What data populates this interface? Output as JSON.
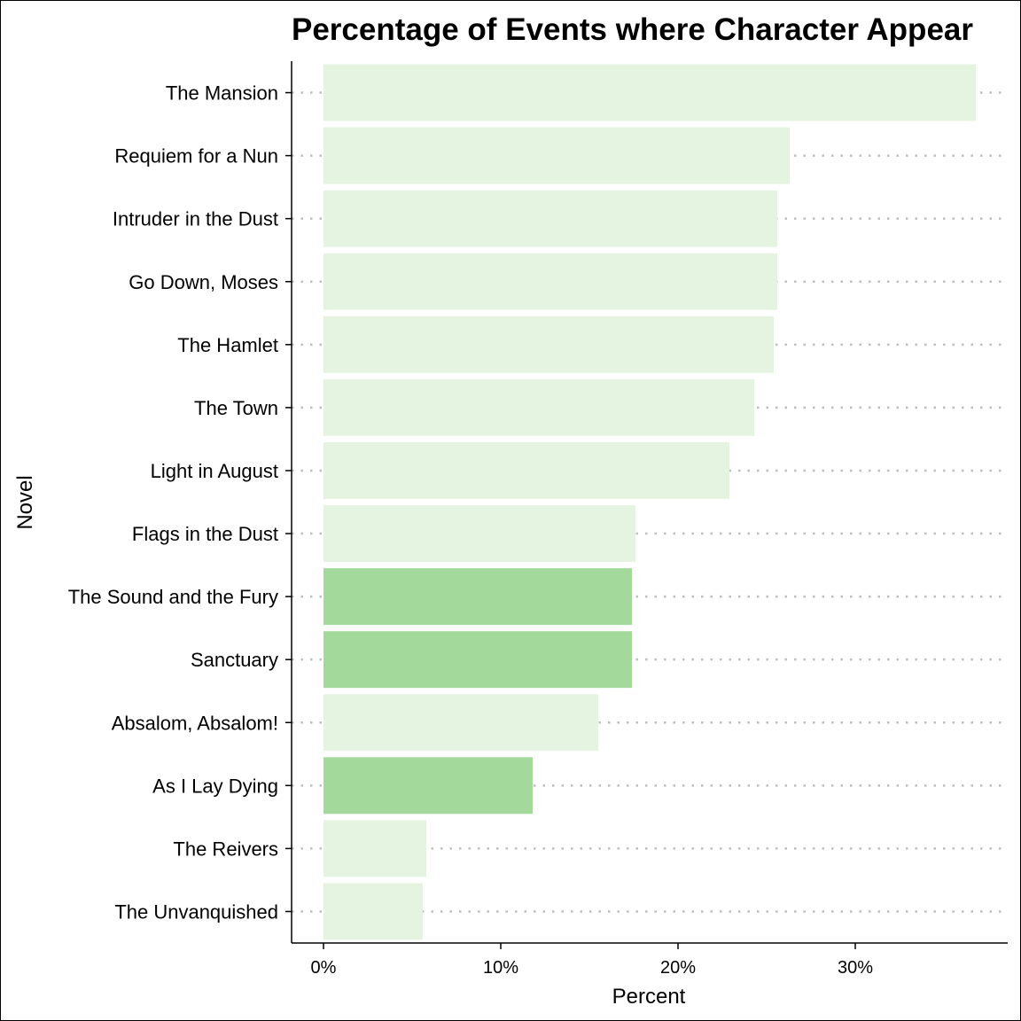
{
  "chart_data": {
    "type": "bar",
    "orientation": "horizontal",
    "title": "Percentage of Events where Character Appear",
    "xlabel": "Percent",
    "ylabel": "Novel",
    "xlim": [
      -1.8,
      38.6
    ],
    "x_ticks": [
      0,
      10,
      20,
      30
    ],
    "x_tick_labels": [
      "0%",
      "10%",
      "20%",
      "30%"
    ],
    "categories": [
      "The Mansion",
      "Requiem for a Nun",
      "Intruder in the Dust",
      "Go Down, Moses",
      "The Hamlet",
      "The Town",
      "Light in August",
      "Flags in the Dust",
      "The Sound and the Fury",
      "Sanctuary",
      "Absalom, Absalom!",
      "As I Lay Dying",
      "The Reivers",
      "The Unvanquished"
    ],
    "values": [
      36.8,
      26.3,
      25.6,
      25.6,
      25.4,
      24.3,
      22.9,
      17.6,
      17.4,
      17.4,
      15.5,
      11.8,
      5.8,
      5.6
    ],
    "highlighted": [
      false,
      false,
      false,
      false,
      false,
      false,
      false,
      false,
      true,
      true,
      false,
      true,
      false,
      false
    ],
    "grid": "dotted horizontal guides",
    "legend": "none",
    "colors": {
      "bar": "#e5f4e0",
      "bar_highlight": "#a3d99b",
      "grid": "#bebebe",
      "axis": "#000000"
    }
  }
}
